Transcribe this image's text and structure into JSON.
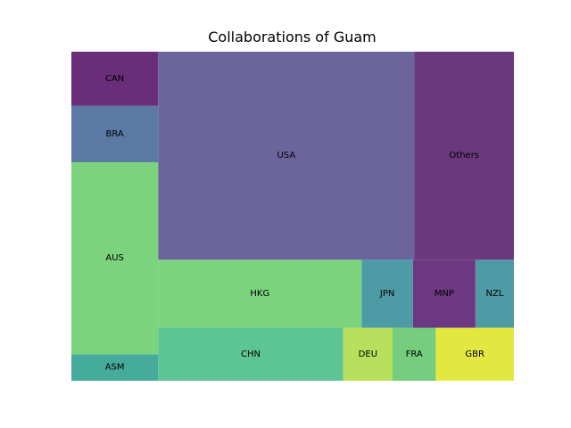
{
  "chart_data": {
    "type": "treemap",
    "title": "Collaborations of Guam",
    "items": [
      {
        "label": "ASM",
        "value": 21,
        "color": "#45ac9b"
      },
      {
        "label": "AUS",
        "value": 153,
        "color": "#7cd37e"
      },
      {
        "label": "BRA",
        "value": 45,
        "color": "#5b79a4"
      },
      {
        "label": "CAN",
        "value": 43,
        "color": "#682e7a"
      },
      {
        "label": "CHN",
        "value": 90,
        "color": "#5cc593"
      },
      {
        "label": "DEU",
        "value": 24,
        "color": "#b7e15d"
      },
      {
        "label": "FRA",
        "value": 21,
        "color": "#74ce7e"
      },
      {
        "label": "GBR",
        "value": 38,
        "color": "#e3e841"
      },
      {
        "label": "HKG",
        "value": 127,
        "color": "#7cd37e"
      },
      {
        "label": "JPN",
        "value": 32,
        "color": "#4d9ba4"
      },
      {
        "label": "MNP",
        "value": 39,
        "color": "#6c3881"
      },
      {
        "label": "NZL",
        "value": 24,
        "color": "#4d9ba4"
      },
      {
        "label": "USA",
        "value": 489,
        "color": "#6b649d"
      },
      {
        "label": "Others",
        "value": 190,
        "color": "#6a397d"
      }
    ]
  }
}
